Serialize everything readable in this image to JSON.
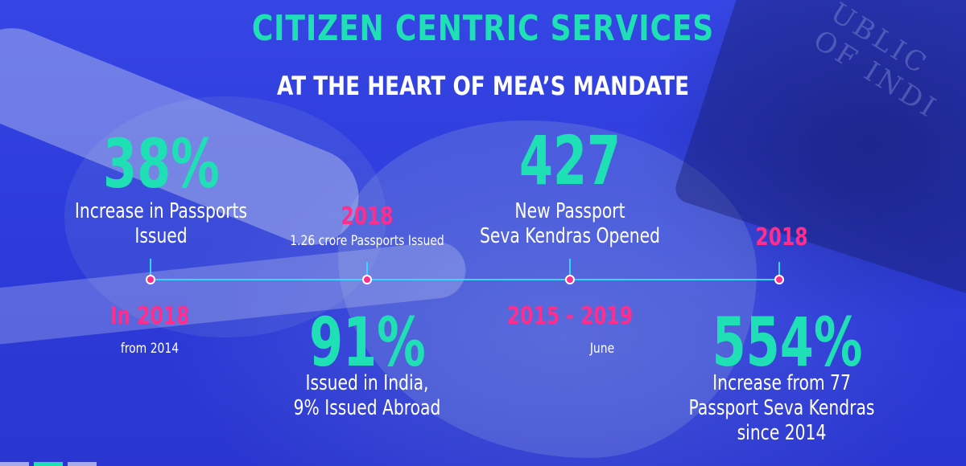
{
  "header": {
    "title": "CITIZEN CENTRIC SERVICES",
    "subtitle": "AT THE HEART OF MEA’S MANDATE"
  },
  "stats": {
    "passports_growth": {
      "value": "38%",
      "description_line1": "Increase in Passports",
      "description_line2": "Issued",
      "period": "In 2018",
      "period_note": "from 2014"
    },
    "passports_2018": {
      "year": "2018",
      "note": "1.26 crore Passports Issued",
      "value": "91%",
      "description_line1": "Issued in India,",
      "description_line2": "9% Issued Abroad"
    },
    "new_kendras": {
      "value": "427",
      "description_line1": "New Passport",
      "description_line2": "Seva Kendras Opened",
      "period": "2015 - 2019",
      "period_note": "June"
    },
    "kendra_growth": {
      "year": "2018",
      "value": "554%",
      "description_line1": "Increase from 77",
      "description_line2": "Passport Seva Kendras",
      "description_line3": "since 2014"
    }
  },
  "background": {
    "passport_cover_text": "UBLIC OF INDI"
  },
  "colors": {
    "accent_teal": "#1ee0b4",
    "accent_pink": "#ff2d8c",
    "timeline": "#39d7ff",
    "background": "#2a3ad8"
  }
}
